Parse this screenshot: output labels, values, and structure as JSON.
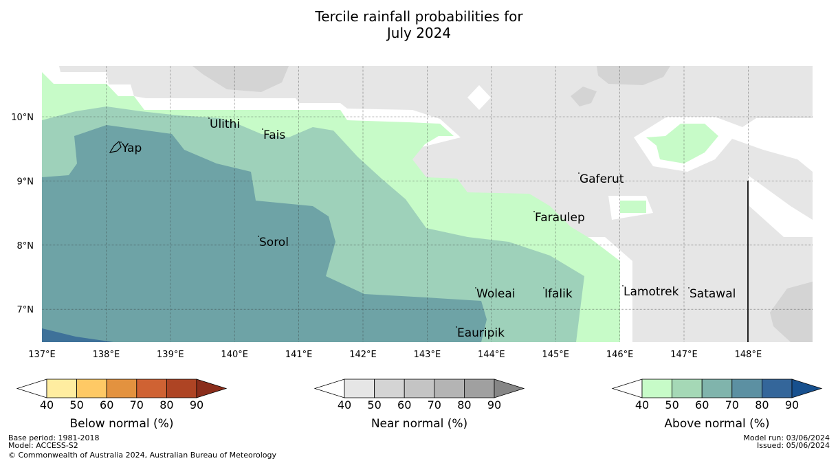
{
  "title": {
    "line1": "Tercile rainfall probabilities for",
    "line2": "July 2024"
  },
  "map": {
    "lon_ticks": [
      "137°E",
      "138°E",
      "139°E",
      "140°E",
      "141°E",
      "142°E",
      "143°E",
      "144°E",
      "145°E",
      "146°E",
      "147°E",
      "148°E"
    ],
    "lat_ticks": [
      "10°N",
      "9°N",
      "8°N",
      "7°N"
    ],
    "places": [
      {
        "name": "Ulithi"
      },
      {
        "name": "Fais"
      },
      {
        "name": "Yap"
      },
      {
        "name": "Gaferut"
      },
      {
        "name": "Faraulep"
      },
      {
        "name": "Sorol"
      },
      {
        "name": "Woleai"
      },
      {
        "name": "Ifalik"
      },
      {
        "name": "Lamotrek"
      },
      {
        "name": "Satawal"
      },
      {
        "name": "Eauripik"
      }
    ]
  },
  "legends": {
    "below": {
      "label": "Below normal (%)",
      "ticks": [
        "40",
        "50",
        "60",
        "70",
        "80",
        "90"
      ],
      "colors": [
        "#ffffff",
        "#ffeda0",
        "#fec965",
        "#e3923f",
        "#cf6233",
        "#ae4424",
        "#8a2d1b"
      ]
    },
    "near": {
      "label": "Near normal (%)",
      "ticks": [
        "40",
        "50",
        "60",
        "70",
        "80",
        "90"
      ],
      "colors": [
        "#ffffff",
        "#e6e6e6",
        "#d4d4d4",
        "#c4c4c4",
        "#b4b4b4",
        "#a0a0a0",
        "#868686"
      ]
    },
    "above": {
      "label": "Above normal (%)",
      "ticks": [
        "40",
        "50",
        "60",
        "70",
        "80",
        "90"
      ],
      "colors": [
        "#ffffff",
        "#c7fbc8",
        "#a5d8b6",
        "#80b4ac",
        "#5c90a2",
        "#34669a",
        "#17508e"
      ]
    }
  },
  "colors": {
    "above_50_60": "#9ed1ba",
    "above_60_70": "#6ea3a6",
    "above_70_80": "#3e7199"
  },
  "footer": {
    "base_period": "Base period: 1981-2018",
    "model": "Model: ACCESS-S2",
    "copyright": "© Commonwealth of Australia 2024, Australian Bureau of Meteorology",
    "model_run": "Model run: 03/06/2024",
    "issued": "Issued: 05/06/2024"
  }
}
